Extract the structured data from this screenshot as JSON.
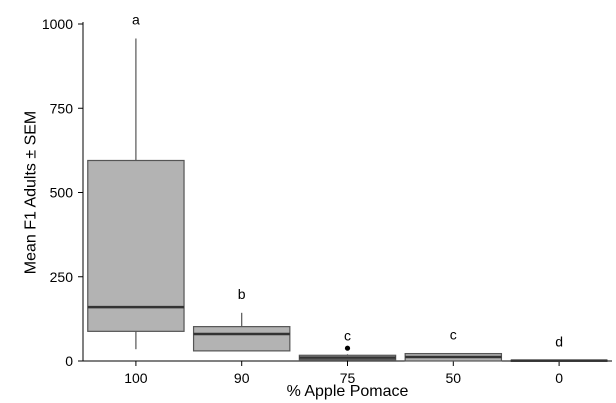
{
  "chart_data": {
    "type": "boxplot",
    "xlabel": "% Apple Pomace",
    "ylabel": "Mean F1 Adults ± SEM",
    "ylim": [
      0,
      1000
    ],
    "yticks": [
      0,
      250,
      500,
      750,
      1000
    ],
    "box_fill": "#b3b3b3",
    "grid": false,
    "categories": [
      "100",
      "90",
      "75",
      "50",
      "0"
    ],
    "boxes": [
      {
        "category": "100",
        "whisker_low": 35,
        "q1": 88,
        "median": 160,
        "q3": 595,
        "whisker_high": 957,
        "outliers": [],
        "significance": "a"
      },
      {
        "category": "90",
        "whisker_low": 30,
        "q1": 30,
        "median": 80,
        "q3": 102,
        "whisker_high": 143,
        "outliers": [],
        "significance": "b"
      },
      {
        "category": "75",
        "whisker_low": 2,
        "q1": 4,
        "median": 10,
        "q3": 17,
        "whisker_high": 20,
        "outliers": [
          38
        ],
        "significance": "c"
      },
      {
        "category": "50",
        "whisker_low": 0,
        "q1": 0,
        "median": 12,
        "q3": 22,
        "whisker_high": 22,
        "outliers": [],
        "significance": "c"
      },
      {
        "category": "0",
        "whisker_low": 0,
        "q1": 0,
        "median": 1,
        "q3": 2,
        "whisker_high": 2,
        "outliers": [],
        "significance": "d"
      }
    ]
  }
}
